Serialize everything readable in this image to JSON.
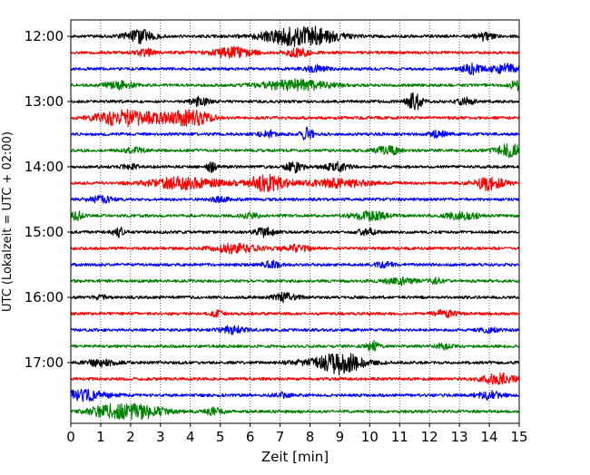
{
  "chart_data": {
    "type": "line",
    "title": "",
    "xlabel": "Zeit  [min]",
    "ylabel": "UTC (Lokalzeit = UTC + 02:00)",
    "xlim": [
      0,
      15
    ],
    "xticks": [
      "0",
      "1",
      "2",
      "3",
      "4",
      "5",
      "6",
      "7",
      "8",
      "9",
      "10",
      "11",
      "12",
      "13",
      "14",
      "15"
    ],
    "yticks": [
      "12:00",
      "13:00",
      "14:00",
      "15:00",
      "16:00",
      "17:00"
    ],
    "grid": "vertical dotted",
    "legend": "none",
    "colors": [
      "#000000",
      "#ff0000",
      "#0000ff",
      "#008000"
    ],
    "rows": [
      {
        "time": "12:00",
        "color": "#000000",
        "events": [
          [
            2.3,
            0.5,
            0.8
          ],
          [
            7.3,
            1.0,
            0.9
          ],
          [
            8.3,
            0.8,
            0.7
          ],
          [
            13.8,
            0.3,
            0.5
          ]
        ]
      },
      {
        "time": "12:15",
        "color": "#ff0000",
        "events": [
          [
            5.4,
            0.7,
            0.6
          ],
          [
            7.6,
            0.4,
            0.5
          ],
          [
            2.5,
            0.3,
            0.4
          ]
        ]
      },
      {
        "time": "12:30",
        "color": "#0000ff",
        "events": [
          [
            13.4,
            0.3,
            0.6
          ],
          [
            14.6,
            0.6,
            0.6
          ],
          [
            8.2,
            0.4,
            0.4
          ]
        ]
      },
      {
        "time": "12:45",
        "color": "#008000",
        "events": [
          [
            7.5,
            1.2,
            0.6
          ],
          [
            1.6,
            0.5,
            0.5
          ],
          [
            14.9,
            0.2,
            0.6
          ]
        ]
      },
      {
        "time": "13:00",
        "color": "#000000",
        "events": [
          [
            4.3,
            0.3,
            0.5
          ],
          [
            11.5,
            0.25,
            1.0
          ],
          [
            13.2,
            0.3,
            0.4
          ]
        ]
      },
      {
        "time": "13:15",
        "color": "#ff0000",
        "events": [
          [
            1.6,
            0.8,
            0.8
          ],
          [
            4.1,
            0.6,
            0.7
          ],
          [
            3.0,
            1.2,
            0.5
          ]
        ]
      },
      {
        "time": "13:30",
        "color": "#0000ff",
        "events": [
          [
            7.9,
            0.2,
            0.8
          ],
          [
            6.6,
            0.3,
            0.4
          ],
          [
            12.3,
            0.3,
            0.4
          ]
        ]
      },
      {
        "time": "13:45",
        "color": "#008000",
        "events": [
          [
            14.7,
            0.5,
            0.7
          ],
          [
            10.6,
            0.4,
            0.5
          ],
          [
            2.1,
            0.3,
            0.4
          ]
        ]
      },
      {
        "time": "14:00",
        "color": "#000000",
        "events": [
          [
            4.7,
            0.15,
            0.6
          ],
          [
            7.5,
            0.3,
            0.6
          ],
          [
            8.9,
            0.4,
            0.5
          ],
          [
            2.0,
            0.3,
            0.3
          ]
        ]
      },
      {
        "time": "14:15",
        "color": "#ff0000",
        "events": [
          [
            3.8,
            1.2,
            0.7
          ],
          [
            6.6,
            0.7,
            1.0
          ],
          [
            14.0,
            0.5,
            0.8
          ],
          [
            9.0,
            1.0,
            0.5
          ]
        ]
      },
      {
        "time": "14:30",
        "color": "#0000ff",
        "events": [
          [
            1.0,
            0.4,
            0.4
          ],
          [
            5.0,
            0.3,
            0.3
          ]
        ]
      },
      {
        "time": "14:45",
        "color": "#008000",
        "events": [
          [
            10.0,
            0.6,
            0.5
          ],
          [
            13.1,
            0.5,
            0.5
          ],
          [
            0.2,
            0.2,
            0.5
          ],
          [
            6.0,
            0.3,
            0.3
          ]
        ]
      },
      {
        "time": "15:00",
        "color": "#000000",
        "events": [
          [
            6.5,
            0.3,
            0.6
          ],
          [
            1.6,
            0.2,
            0.5
          ],
          [
            9.9,
            0.3,
            0.4
          ]
        ]
      },
      {
        "time": "15:15",
        "color": "#ff0000",
        "events": [
          [
            5.5,
            0.8,
            0.5
          ],
          [
            7.5,
            0.5,
            0.4
          ]
        ]
      },
      {
        "time": "15:30",
        "color": "#0000ff",
        "events": [
          [
            6.7,
            0.3,
            0.4
          ],
          [
            10.5,
            0.3,
            0.3
          ]
        ]
      },
      {
        "time": "15:45",
        "color": "#008000",
        "events": [
          [
            11.0,
            0.5,
            0.4
          ],
          [
            12.2,
            0.3,
            0.3
          ]
        ]
      },
      {
        "time": "16:00",
        "color": "#000000",
        "events": [
          [
            7.2,
            0.4,
            0.5
          ],
          [
            1.0,
            0.2,
            0.3
          ]
        ]
      },
      {
        "time": "16:15",
        "color": "#ff0000",
        "events": [
          [
            12.5,
            0.4,
            0.4
          ],
          [
            4.9,
            0.2,
            0.3
          ]
        ]
      },
      {
        "time": "16:30",
        "color": "#0000ff",
        "events": [
          [
            5.4,
            0.4,
            0.5
          ],
          [
            14.0,
            0.3,
            0.3
          ]
        ]
      },
      {
        "time": "16:45",
        "color": "#008000",
        "events": [
          [
            10.1,
            0.2,
            0.6
          ],
          [
            12.5,
            0.3,
            0.3
          ]
        ]
      },
      {
        "time": "17:00",
        "color": "#000000",
        "events": [
          [
            9.1,
            0.6,
            0.9
          ],
          [
            8.7,
            1.2,
            0.5
          ],
          [
            1.0,
            0.5,
            0.4
          ]
        ]
      },
      {
        "time": "17:15",
        "color": "#ff0000",
        "events": [
          [
            14.3,
            0.6,
            0.6
          ]
        ]
      },
      {
        "time": "17:30",
        "color": "#0000ff",
        "events": [
          [
            0.4,
            0.8,
            0.6
          ],
          [
            14.0,
            0.4,
            0.5
          ],
          [
            7.0,
            0.3,
            0.3
          ]
        ]
      },
      {
        "time": "17:45",
        "color": "#008000",
        "events": [
          [
            2.3,
            0.9,
            0.8
          ],
          [
            1.2,
            0.6,
            0.6
          ],
          [
            4.8,
            0.3,
            0.4
          ]
        ]
      }
    ]
  }
}
